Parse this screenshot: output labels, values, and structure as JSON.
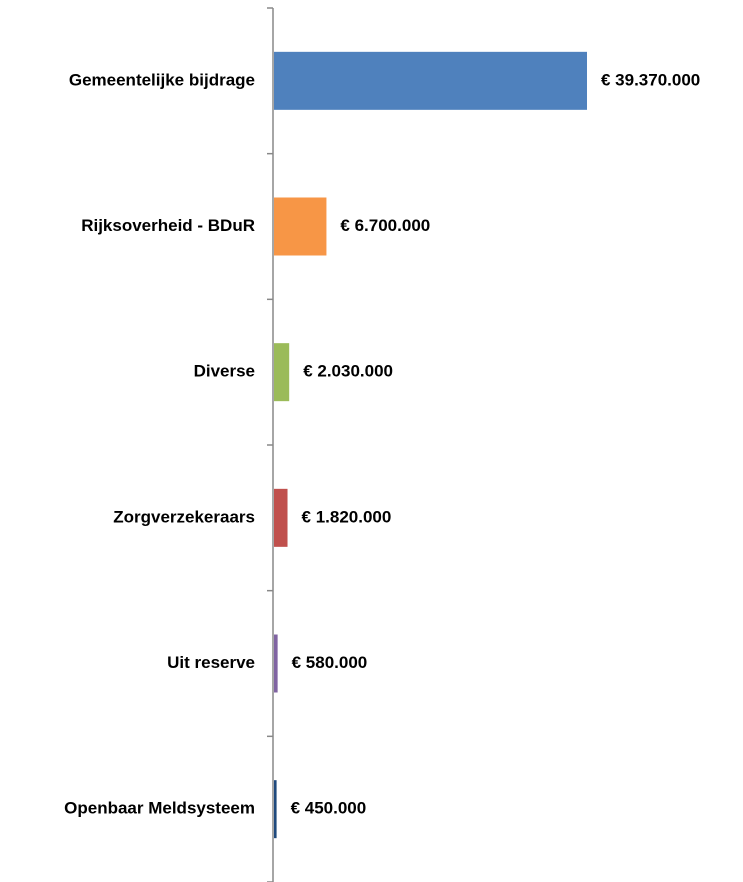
{
  "chart_data": {
    "type": "barh",
    "categories": [
      "Gemeentelijke bijdrage",
      "Rijksoverheid -  BDuR",
      "Diverse",
      "Zorgverzekeraars",
      "Uit reserve",
      "Openbaar Meldsysteem"
    ],
    "values": [
      39370000,
      6700000,
      2030000,
      1820000,
      580000,
      450000
    ],
    "value_labels": [
      "€ 39.370.000",
      "€ 6.700.000",
      "€ 2.030.000",
      "€ 1.820.000",
      "€ 580.000",
      "€ 450.000"
    ],
    "colors": [
      "#4f81bd",
      "#f79646",
      "#9bbb59",
      "#c0504d",
      "#8064a2",
      "#1f497d"
    ]
  }
}
